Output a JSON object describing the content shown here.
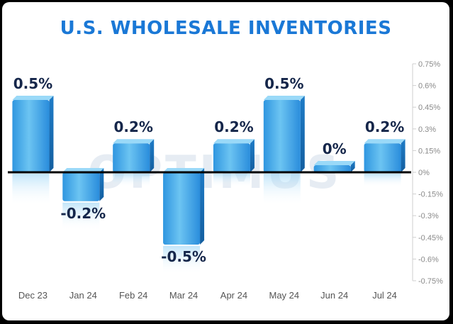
{
  "chart_data": {
    "type": "bar",
    "title": "U.S. WHOLESALE INVENTORIES",
    "categories": [
      "Dec 23",
      "Jan 24",
      "Feb 24",
      "Mar 24",
      "Apr 24",
      "May 24",
      "Jun 24",
      "Jul 24"
    ],
    "values": [
      0.5,
      -0.2,
      0.2,
      -0.5,
      0.2,
      0.5,
      0,
      0.2
    ],
    "data_labels": [
      "0.5%",
      "-0.2%",
      "0.2%",
      "-0.5%",
      "0.2%",
      "0.5%",
      "0%",
      "0.2%"
    ],
    "y_ticks": [
      0.75,
      0.6,
      0.45,
      0.3,
      0.15,
      0,
      -0.15,
      -0.3,
      -0.45,
      -0.6,
      -0.75
    ],
    "y_tick_labels": [
      "0.75%",
      "0.6%",
      "0.45%",
      "0.3%",
      "0.15%",
      "0%",
      "-0.15%",
      "-0.3%",
      "-0.45%",
      "-0.6%",
      "-0.75%"
    ],
    "ylim": [
      -0.75,
      0.75
    ],
    "xlabel": "",
    "ylabel": "",
    "grid": false,
    "y_axis_position": "right",
    "colors": {
      "bar_top": "#6fc8f4",
      "bar_bottom": "#1d86d6",
      "title": "#1a78d6",
      "label": "#15264a",
      "zero_line": "#000000"
    }
  },
  "watermark": "OPTIMUS"
}
